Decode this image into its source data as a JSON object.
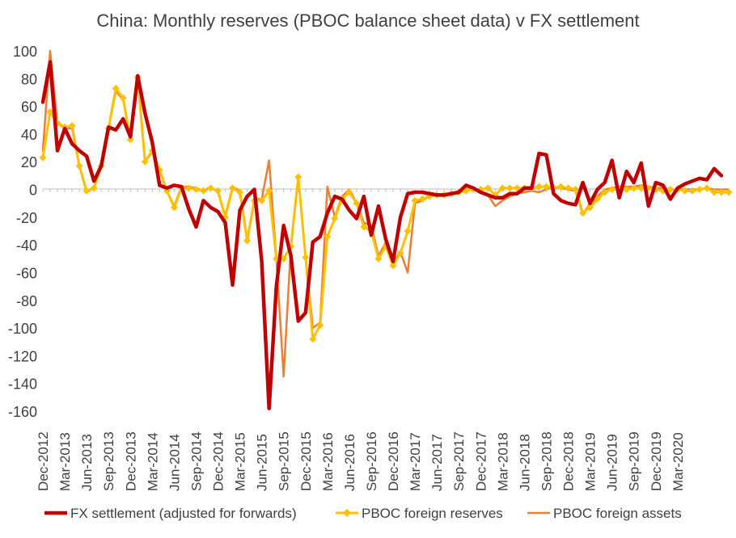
{
  "chart_data": {
    "type": "line",
    "title": "China: Monthly reserves (PBOC balance sheet data) v FX  settlement",
    "xlabel": "",
    "ylabel": "",
    "ylim": [
      -160,
      100
    ],
    "yticks": [
      100,
      80,
      60,
      40,
      20,
      0,
      -20,
      -40,
      -60,
      -80,
      -100,
      -120,
      -140,
      -160
    ],
    "grid": false,
    "legend_position": "bottom",
    "x_tick_labels": [
      "Dec-2012",
      "Mar-2013",
      "Jun-2013",
      "Sep-2013",
      "Dec-2013",
      "Mar-2014",
      "Jun-2014",
      "Sep-2014",
      "Dec-2014",
      "Mar-2015",
      "Jun-2015",
      "Sep-2015",
      "Dec-2015",
      "Mar-2016",
      "Jun-2016",
      "Sep-2016",
      "Dec-2016",
      "Mar-2017",
      "Jun-2017",
      "Sep-2017",
      "Dec-2017",
      "Mar-2018",
      "Jun-2018",
      "Sep-2018",
      "Dec-2018",
      "Mar-2019",
      "Jun-2019",
      "Sep-2019",
      "Dec-2019",
      "Mar-2020"
    ],
    "x_start": "Dec-2012",
    "x_frequency": "monthly",
    "series": [
      {
        "name": "FX settlement (adjusted for forwards)",
        "color": "#C00000",
        "values": [
          63,
          92,
          28,
          44,
          33,
          28,
          24,
          6,
          17,
          45,
          43,
          51,
          38,
          82,
          55,
          34,
          3,
          1,
          3,
          2,
          -14,
          -27,
          -8,
          -13,
          -16,
          -24,
          -69,
          -15,
          -5,
          0,
          -52,
          -158,
          -70,
          -26,
          -48,
          -95,
          -89,
          -38,
          -34,
          -17,
          -5,
          -7,
          -15,
          -21,
          -5,
          -33,
          -12,
          -36,
          -52,
          -20,
          -3,
          -2,
          -2,
          -3,
          -4,
          -4,
          -3,
          -2,
          3,
          1,
          -2,
          -4,
          -6,
          -6,
          -3,
          -3,
          1,
          1,
          26,
          25,
          -3,
          -8,
          -10,
          -11,
          5,
          -10,
          0,
          5,
          21,
          -6,
          13,
          5,
          19,
          -12,
          5,
          3,
          -7,
          1,
          4,
          6,
          8,
          7,
          15,
          10
        ],
        "line_width": 4.5
      },
      {
        "name": "PBOC foreign reserves",
        "color": "#FFC000",
        "values": [
          23,
          56,
          48,
          45,
          46,
          17,
          -1,
          1,
          17,
          44,
          73,
          66,
          36,
          81,
          20,
          28,
          14,
          -1,
          -13,
          1,
          1,
          0,
          -1,
          1,
          -1,
          -20,
          1,
          -2,
          -37,
          -8,
          -8,
          -1,
          -50,
          -50,
          -41,
          9,
          -49,
          -108,
          -98,
          -34,
          -21,
          -7,
          -2,
          -10,
          -27,
          -30,
          -50,
          -41,
          -55,
          -46,
          -30,
          -8,
          -7,
          -5,
          -4,
          -4,
          -3,
          -2,
          -1,
          0,
          0,
          1,
          -4,
          1,
          1,
          1,
          1,
          1,
          2,
          2,
          1,
          2,
          1,
          0,
          -17,
          -13,
          -7,
          -2,
          0,
          0,
          0,
          1,
          1,
          1,
          0,
          -1,
          0,
          0,
          -1,
          -1,
          0,
          1,
          -2,
          -2,
          -2
        ],
        "line_width": 3,
        "markers": true
      },
      {
        "name": "PBOC foreign assets",
        "color": "#ED7D31",
        "values": [
          28,
          100,
          48,
          44,
          44,
          17,
          -2,
          1,
          16,
          44,
          71,
          65,
          37,
          80,
          20,
          27,
          13,
          -1,
          -12,
          2,
          2,
          1,
          -1,
          2,
          -2,
          -19,
          2,
          -1,
          -36,
          -7,
          -7,
          21,
          -50,
          -135,
          -40,
          8,
          -48,
          -100,
          -96,
          2,
          -20,
          -5,
          0,
          -10,
          -24,
          -26,
          -48,
          -38,
          -53,
          -45,
          -60,
          -10,
          -8,
          -5,
          -4,
          -3,
          -3,
          -2,
          -1,
          1,
          -2,
          -4,
          -12,
          -8,
          -5,
          -3,
          -2,
          -1,
          -2,
          0,
          2,
          1,
          0,
          -1,
          -18,
          -10,
          -5,
          0,
          1,
          2,
          2,
          2,
          3,
          2,
          1,
          1,
          0,
          0,
          0,
          0,
          0,
          1,
          0,
          0,
          0
        ],
        "line_width": 2.5
      }
    ]
  }
}
